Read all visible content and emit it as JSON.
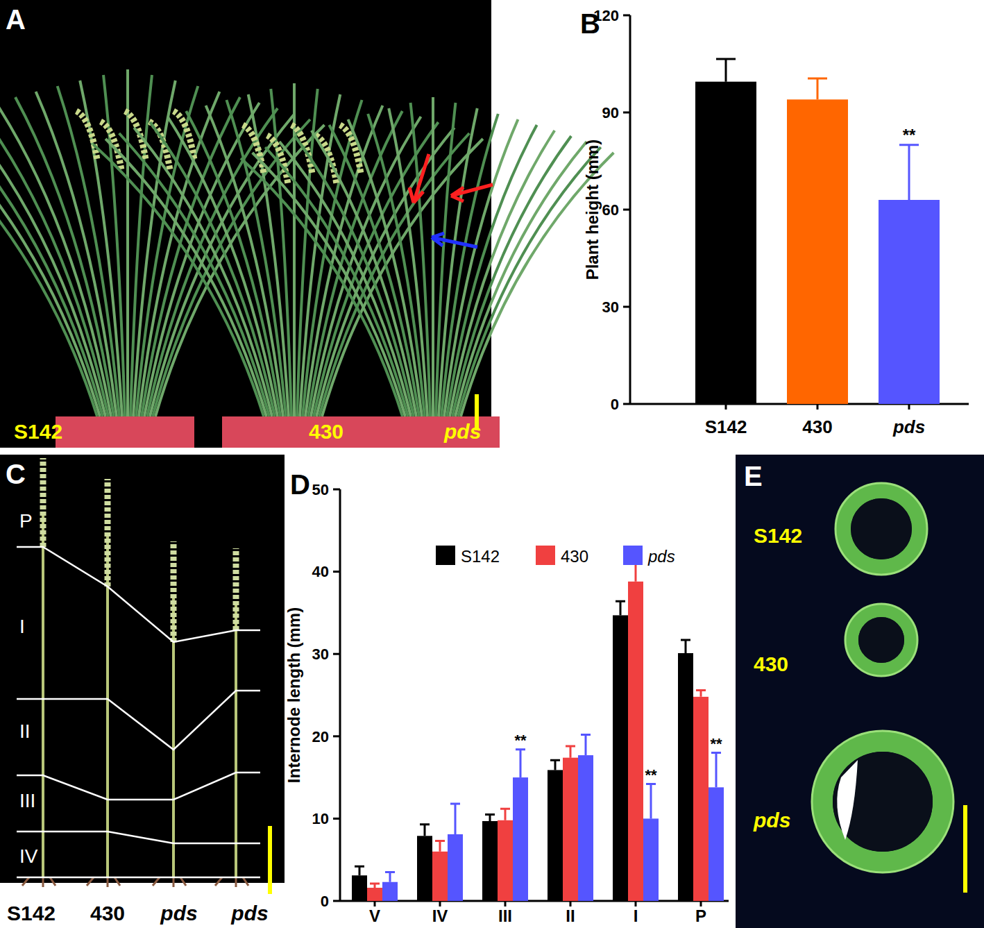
{
  "panel_labels": [
    "A",
    "B",
    "C",
    "D",
    "E"
  ],
  "chart_data": [
    {
      "type": "bar",
      "y_label": "Plant height (mm)",
      "categories": [
        "S142",
        "430",
        "pds"
      ],
      "values": [
        99.5,
        94,
        63
      ],
      "errors": [
        7,
        6.5,
        17
      ],
      "significance": [
        null,
        null,
        "**"
      ],
      "colors": [
        "#000000",
        "#ff6600",
        "#5555ff"
      ],
      "ylim": [
        0,
        120
      ],
      "yticks": [
        0,
        30,
        60,
        90,
        120
      ]
    },
    {
      "type": "bar",
      "y_label": "Internode length (mm)",
      "categories": [
        "V",
        "IV",
        "III",
        "II",
        "I",
        "P"
      ],
      "series": [
        {
          "name": "S142",
          "color": "#000000",
          "values": [
            3.1,
            7.9,
            9.7,
            15.9,
            34.7,
            30.1
          ],
          "errors": [
            1.1,
            1.4,
            0.8,
            1.2,
            1.7,
            1.6
          ]
        },
        {
          "name": "430",
          "color": "#f04040",
          "values": [
            1.6,
            6.0,
            9.8,
            17.4,
            38.8,
            24.8
          ],
          "errors": [
            0.5,
            1.3,
            1.4,
            1.4,
            2.3,
            0.8
          ]
        },
        {
          "name": "pds",
          "color": "#5555ff",
          "values": [
            2.3,
            8.1,
            15.0,
            17.7,
            10.0,
            13.8
          ],
          "errors": [
            1.2,
            3.7,
            3.4,
            2.5,
            4.2,
            4.2
          ],
          "significance": [
            null,
            null,
            "**",
            null,
            "**",
            "**"
          ]
        }
      ],
      "ylim": [
        0,
        50
      ],
      "yticks": [
        0,
        10,
        20,
        30,
        40,
        50
      ],
      "legend": "top"
    }
  ],
  "photo_panels": {
    "A": {
      "labels": [
        "S142",
        "430",
        "pds"
      ]
    },
    "C": {
      "internodes": [
        "P",
        "I",
        "II",
        "III",
        "IV"
      ],
      "labels": [
        "S142",
        "430",
        "pds",
        "pds"
      ]
    },
    "E": {
      "labels": [
        "S142",
        "430",
        "pds"
      ]
    }
  }
}
